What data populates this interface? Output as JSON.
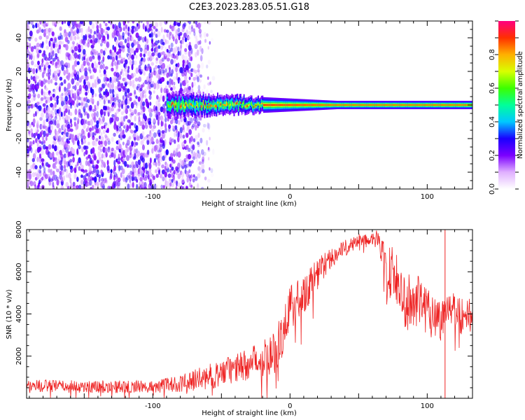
{
  "title": "C2E3.2023.283.05.51.G18",
  "colors": {
    "snr_line": "#ee2222",
    "frame": "#000000"
  },
  "chart_data": [
    {
      "type": "heatmap",
      "xlabel": "Height of straight line (km)",
      "ylabel": "Frequency (Hz)",
      "xlim": [
        -192,
        133
      ],
      "ylim": [
        -50,
        50
      ],
      "x_ticks": [
        -100,
        0,
        100
      ],
      "x_tick_labels": [
        "-100",
        "0",
        "100"
      ],
      "y_ticks": [
        -40,
        -20,
        0,
        20,
        40
      ],
      "y_tick_labels": [
        "-40",
        "-20",
        "0",
        "20",
        "40"
      ],
      "colorbar": {
        "label": "Normalized spectral amplitude",
        "range": [
          0,
          1
        ],
        "ticks": [
          0,
          0.2,
          0.4,
          0.6,
          0.8
        ],
        "tick_labels": [
          "0.0",
          "0.2",
          "0.4",
          "0.6",
          "0.8"
        ],
        "colormap": [
          "#ffffff",
          "#e0b0ff",
          "#7b00ff",
          "#1a00ff",
          "#00c8ff",
          "#00ff9a",
          "#3cff00",
          "#d8ff00",
          "#ffb000",
          "#ff3000",
          "#ff0080"
        ]
      },
      "features": {
        "noise_region_x": [
          -192,
          -75
        ],
        "carrier_band": {
          "x": [
            -90,
            133
          ],
          "frequency": 0,
          "halfwidth_hz": [
            6,
            2
          ]
        },
        "noise_amplitude": [
          0.05,
          0.3
        ],
        "carrier_amplitude_peak": 0.9
      }
    },
    {
      "type": "line",
      "xlabel": "Height of straight line (km)",
      "ylabel": "SNR (10 * v/v)",
      "xlim": [
        -192,
        133
      ],
      "ylim": [
        0,
        8000
      ],
      "x_ticks": [
        -100,
        0,
        100
      ],
      "x_tick_labels": [
        "-100",
        "0",
        "100"
      ],
      "y_ticks": [
        2000,
        4000,
        6000,
        8000
      ],
      "y_tick_labels": [
        "2000",
        "4000",
        "6000",
        "8000"
      ],
      "series": [
        {
          "envelope_x": [
            -192,
            -150,
            -100,
            -80,
            -60,
            -40,
            -20,
            -10,
            -5,
            0,
            10,
            20,
            30,
            40,
            50,
            60,
            65,
            70,
            75,
            80,
            90,
            100,
            105,
            110,
            115,
            120,
            125,
            133
          ],
          "envelope_y": [
            600,
            550,
            550,
            700,
            1000,
            1400,
            1900,
            2300,
            3200,
            4200,
            5000,
            5900,
            6700,
            7100,
            7500,
            7600,
            7500,
            5800,
            6200,
            4800,
            4500,
            4300,
            4000,
            3600,
            4600,
            4200,
            3900,
            3900
          ],
          "noise_y": [
            300,
            300,
            300,
            400,
            600,
            700,
            900,
            1100,
            1300,
            1200,
            1000,
            800,
            500,
            400,
            300,
            300,
            500,
            1400,
            1400,
            1400,
            1400,
            1300,
            1200,
            1000,
            900,
            900,
            900,
            900
          ],
          "spikes": [
            {
              "x": 113,
              "y_low": 0,
              "y_high": 8000
            }
          ],
          "sample_step_km": 0.3
        }
      ]
    }
  ]
}
